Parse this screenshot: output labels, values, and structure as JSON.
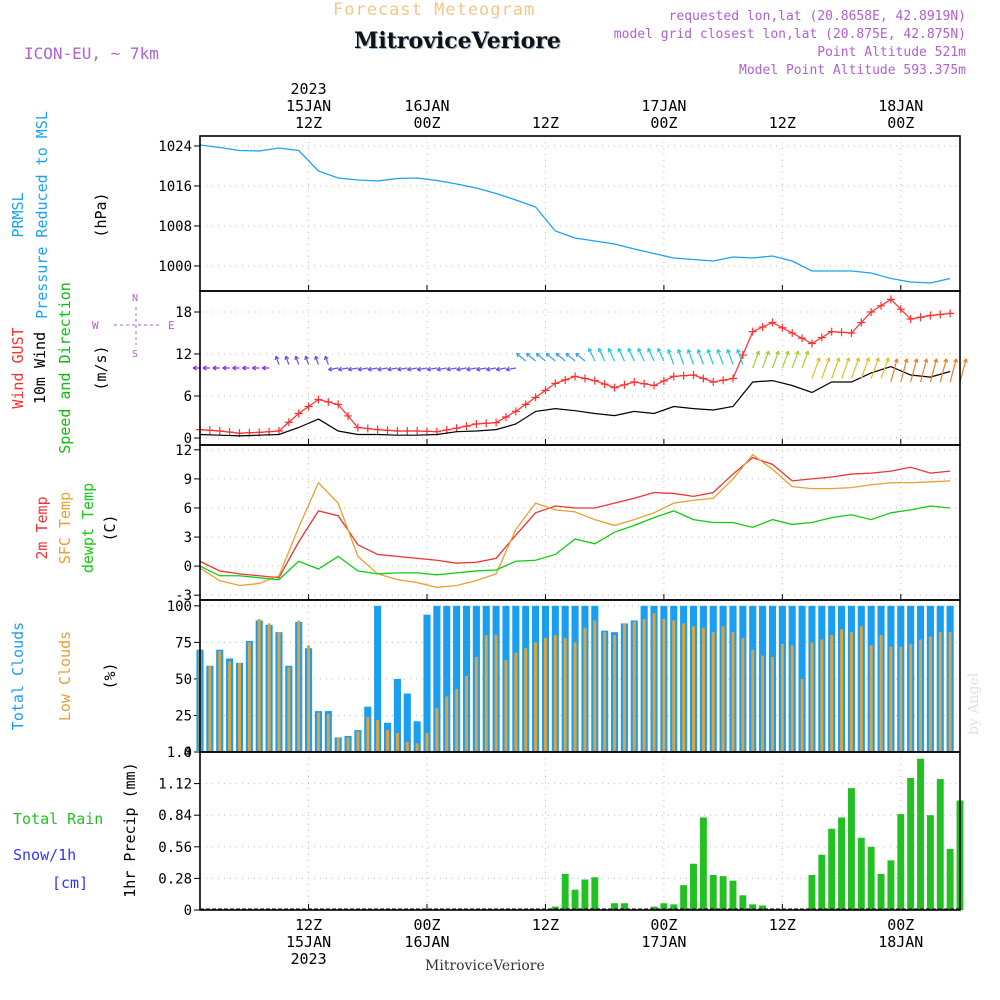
{
  "header": {
    "product": "Forecast Meteogram",
    "location": "MitroviceVeriore",
    "model": "ICON-EU, ~ 7km",
    "requested": "requested lon,lat (20.8658E, 42.8919N)",
    "closest": "model grid closest lon,lat (20.875E, 42.875N)",
    "point_alt": "Point Altitude 521m",
    "model_alt": "Model Point Altitude 593.375m",
    "watermark": "by Angel",
    "footer": "MitroviceVeriore"
  },
  "colors": {
    "pressure": "#1aa3f0",
    "gust": "#ff3030",
    "wind": "#000000",
    "t2m": "#ee3333",
    "sfc": "#e8a030",
    "dewpt": "#11cc11",
    "total_cloud": "#1a9ef0",
    "low_cloud": "#e0a23a",
    "precip": "#22c022",
    "snow": "#3333ff",
    "meta": "#b060d0"
  },
  "chart_data": [
    {
      "type": "line",
      "panel": "pressure",
      "title": "PRMSL Pressure Reduced to MSL",
      "ylabel": "(hPa)",
      "ylim": [
        995,
        1026
      ],
      "yticks": [
        1000,
        1008,
        1016,
        1024
      ],
      "x_hours": [
        0,
        2,
        4,
        6,
        8,
        10,
        12,
        14,
        16,
        18,
        20,
        22,
        24,
        26,
        28,
        30,
        32,
        34,
        36,
        38,
        40,
        42,
        44,
        46,
        48,
        50,
        52,
        54,
        56,
        58,
        60,
        62,
        64,
        66,
        68,
        70,
        72,
        74,
        76
      ],
      "values": [
        1024.2,
        1023.7,
        1023.1,
        1023.0,
        1023.6,
        1023.1,
        1019.0,
        1017.6,
        1017.2,
        1017.0,
        1017.5,
        1017.6,
        1017.1,
        1016.4,
        1015.6,
        1014.5,
        1013.2,
        1011.8,
        1007.0,
        1005.6,
        1005.0,
        1004.4,
        1003.4,
        1002.5,
        1001.6,
        1001.3,
        1001.0,
        1001.8,
        1001.6,
        1002.0,
        1001.0,
        999.0,
        999.0,
        999.0,
        998.6,
        997.5,
        996.8,
        996.6,
        997.5
      ]
    },
    {
      "type": "line",
      "panel": "wind",
      "title": "Wind GUST / 10m Wind Speed and Direction",
      "ylabel": "(m/s)",
      "ylim": [
        -1,
        21
      ],
      "yticks": [
        0,
        6,
        12,
        18
      ],
      "compass": "N E S W",
      "x_hours": [
        0,
        2,
        4,
        6,
        8,
        10,
        12,
        14,
        16,
        18,
        20,
        22,
        24,
        26,
        28,
        30,
        32,
        34,
        36,
        38,
        40,
        42,
        44,
        46,
        48,
        50,
        52,
        54,
        56,
        58,
        60,
        62,
        64,
        66,
        68,
        70,
        72,
        74,
        76
      ],
      "series": [
        {
          "name": "Wind GUST",
          "values": [
            1.2,
            1.0,
            0.7,
            0.8,
            1.0,
            3.5,
            5.5,
            4.8,
            1.5,
            1.2,
            1.0,
            1.0,
            0.9,
            1.4,
            2.0,
            2.2,
            3.8,
            5.8,
            7.8,
            8.8,
            8.2,
            7.2,
            8.0,
            7.5,
            8.8,
            9.0,
            8.0,
            8.5,
            15.2,
            16.5,
            15.0,
            13.5,
            15.2,
            15.0,
            18.0,
            19.8,
            17.0,
            17.5,
            17.8
          ]
        },
        {
          "name": "10m Wind",
          "values": [
            0.5,
            0.4,
            0.3,
            0.4,
            0.5,
            1.5,
            2.7,
            1.0,
            0.5,
            0.5,
            0.4,
            0.4,
            0.5,
            0.9,
            1.0,
            1.2,
            2.0,
            3.8,
            4.2,
            3.9,
            3.5,
            3.2,
            3.8,
            3.5,
            4.5,
            4.2,
            4.0,
            4.5,
            8.0,
            8.2,
            7.5,
            6.5,
            8.0,
            8.0,
            9.3,
            10.2,
            9.0,
            8.7,
            9.5
          ]
        }
      ],
      "arrow_color_by_speed": [
        "#9030e0",
        "#7050e8",
        "#40a0f0",
        "#20c8e0",
        "#40d0a0",
        "#a0d030",
        "#e0c020",
        "#f08020"
      ]
    },
    {
      "type": "line",
      "panel": "temperature",
      "title": "2m Temp / SFC Temp / dewpt Temp",
      "ylabel": "(C)",
      "ylim": [
        -3.5,
        12.5
      ],
      "yticks": [
        -3,
        0,
        3,
        6,
        9,
        12
      ],
      "x_hours": [
        0,
        2,
        4,
        6,
        8,
        10,
        12,
        14,
        16,
        18,
        20,
        22,
        24,
        26,
        28,
        30,
        32,
        34,
        36,
        38,
        40,
        42,
        44,
        46,
        48,
        50,
        52,
        54,
        56,
        58,
        60,
        62,
        64,
        66,
        68,
        70,
        72,
        74,
        76
      ],
      "series": [
        {
          "name": "2m Temp",
          "values": [
            0.5,
            -0.5,
            -0.8,
            -1.0,
            -1.2,
            2.5,
            5.7,
            5.2,
            2.2,
            1.2,
            1.0,
            0.8,
            0.6,
            0.3,
            0.4,
            0.8,
            3.2,
            5.5,
            6.2,
            6.0,
            6.0,
            6.5,
            7.0,
            7.6,
            7.5,
            7.2,
            7.6,
            9.5,
            11.2,
            10.5,
            8.8,
            9.0,
            9.2,
            9.5,
            9.6,
            9.8,
            10.2,
            9.6,
            9.8
          ]
        },
        {
          "name": "SFC Temp",
          "values": [
            -0.2,
            -1.5,
            -2.0,
            -1.8,
            -1.0,
            4.0,
            8.6,
            6.5,
            1.0,
            -0.8,
            -1.4,
            -1.7,
            -2.2,
            -2.0,
            -1.5,
            -0.8,
            3.8,
            6.5,
            5.8,
            5.6,
            4.8,
            4.2,
            4.8,
            5.5,
            6.5,
            6.8,
            7.0,
            9.0,
            11.5,
            10.0,
            8.2,
            8.0,
            8.0,
            8.1,
            8.4,
            8.6,
            8.6,
            8.7,
            8.8
          ]
        },
        {
          "name": "dewpt Temp",
          "values": [
            0.0,
            -1.0,
            -1.0,
            -1.2,
            -1.4,
            0.5,
            -0.3,
            1.0,
            -0.5,
            -0.8,
            -0.7,
            -0.7,
            -0.9,
            -0.7,
            -0.5,
            -0.4,
            0.5,
            0.6,
            1.2,
            2.8,
            2.3,
            3.5,
            4.2,
            5.0,
            5.7,
            4.8,
            4.5,
            4.5,
            4.0,
            4.8,
            4.3,
            4.5,
            5.0,
            5.3,
            4.8,
            5.5,
            5.8,
            6.2,
            6.0
          ]
        }
      ]
    },
    {
      "type": "bar",
      "panel": "clouds",
      "title": "Total Clouds / Low Clouds",
      "ylabel": "(%)",
      "ylim": [
        0,
        104
      ],
      "yticks": [
        0,
        25,
        50,
        75,
        100
      ],
      "x_start_hour": 0,
      "x_step_hours": 1,
      "series": [
        {
          "name": "Total Clouds",
          "values": [
            70,
            59,
            70,
            64,
            61,
            76,
            90,
            87,
            82,
            59,
            89,
            71,
            28,
            28,
            10,
            11,
            15,
            31,
            100,
            20,
            50,
            40,
            21,
            94,
            100,
            100,
            100,
            100,
            100,
            100,
            100,
            100,
            100,
            100,
            100,
            100,
            100,
            100,
            100,
            100,
            100,
            83,
            82,
            88,
            90,
            100,
            100,
            100,
            100,
            100,
            100,
            100,
            100,
            100,
            100,
            100,
            100,
            100,
            100,
            100,
            100,
            100,
            100,
            100,
            100,
            100,
            100,
            100,
            100,
            100,
            100,
            100,
            100,
            100,
            100,
            100,
            100
          ]
        },
        {
          "name": "Low Clouds",
          "values": [
            70,
            59,
            69,
            62,
            61,
            75,
            91,
            88,
            82,
            58,
            90,
            73,
            27,
            26,
            10,
            10,
            14,
            24,
            22,
            15,
            13,
            7,
            6,
            13,
            30,
            38,
            43,
            52,
            65,
            80,
            80,
            63,
            68,
            71,
            75,
            78,
            80,
            78,
            75,
            85,
            90,
            82,
            80,
            88,
            89,
            91,
            95,
            91,
            90,
            88,
            86,
            85,
            82,
            86,
            82,
            78,
            70,
            66,
            65,
            74,
            73,
            50,
            75,
            77,
            80,
            84,
            82,
            86,
            73,
            80,
            72,
            72,
            74,
            77,
            79,
            82,
            82
          ]
        }
      ]
    },
    {
      "type": "bar",
      "panel": "precip",
      "title": "Total Rain / Snow/1h [cm]",
      "ylabel": "1hr Precip (mm)",
      "ylim": [
        0,
        1.4
      ],
      "yticks": [
        0,
        0.28,
        0.56,
        0.84,
        1.12,
        1.4
      ],
      "x_start_hour": 0,
      "x_step_hours": 1,
      "series": [
        {
          "name": "Total Rain",
          "values": [
            0,
            0,
            0,
            0,
            0,
            0,
            0,
            0,
            0,
            0,
            0,
            0,
            0,
            0,
            0,
            0,
            0,
            0,
            0,
            0,
            0,
            0,
            0,
            0,
            0,
            0,
            0,
            0,
            0,
            0,
            0,
            0,
            0,
            0,
            0,
            0,
            0.03,
            0.32,
            0.18,
            0.27,
            0.29,
            0,
            0.06,
            0.06,
            0,
            0,
            0.03,
            0.06,
            0.05,
            0.22,
            0.41,
            0.82,
            0.31,
            0.3,
            0.26,
            0.13,
            0.05,
            0.04,
            0,
            0,
            0,
            0,
            0.31,
            0.49,
            0.72,
            0.82,
            1.08,
            0.64,
            0.56,
            0.32,
            0.44,
            0.85,
            1.17,
            1.34,
            0.84,
            1.16,
            0.54,
            0.97
          ]
        },
        {
          "name": "Snow/1h",
          "values": [
            0,
            0,
            0,
            0,
            0,
            0,
            0,
            0,
            0,
            0,
            0,
            0,
            0,
            0,
            0,
            0,
            0,
            0,
            0,
            0,
            0,
            0,
            0,
            0,
            0,
            0,
            0,
            0,
            0,
            0,
            0,
            0,
            0,
            0,
            0,
            0,
            0,
            0,
            0,
            0,
            0,
            0,
            0,
            0,
            0,
            0,
            0,
            0,
            0,
            0,
            0,
            0,
            0,
            0,
            0,
            0,
            0,
            0,
            0,
            0,
            0,
            0,
            0,
            0,
            0,
            0,
            0,
            0,
            0,
            0,
            0,
            0,
            0,
            0,
            0,
            0,
            0,
            0
          ]
        }
      ]
    }
  ],
  "time_axis": {
    "hour_start": 0,
    "hour_end": 77,
    "major_ticks": [
      {
        "hour": 11,
        "top": [
          "2023",
          "15JAN",
          "12Z"
        ],
        "bottom": [
          "12Z",
          "15JAN",
          "2023"
        ]
      },
      {
        "hour": 23,
        "top": [
          "16JAN",
          "00Z"
        ],
        "bottom": [
          "00Z",
          "16JAN"
        ]
      },
      {
        "hour": 35,
        "top": [
          "12Z"
        ],
        "bottom": [
          "12Z"
        ]
      },
      {
        "hour": 47,
        "top": [
          "17JAN",
          "00Z"
        ],
        "bottom": [
          "00Z",
          "17JAN"
        ]
      },
      {
        "hour": 59,
        "top": [
          "12Z"
        ],
        "bottom": [
          "12Z"
        ]
      },
      {
        "hour": 71,
        "top": [
          "18JAN",
          "00Z"
        ],
        "bottom": [
          "00Z",
          "18JAN"
        ]
      }
    ]
  },
  "panel_labels": {
    "pressure": [
      {
        "text": "PRMSL",
        "color": "#1aa3f0"
      },
      {
        "text": "Pressure Reduced to MSL",
        "color": "#1aa3f0"
      },
      {
        "text": "(hPa)",
        "color": "#000000"
      }
    ],
    "wind": [
      {
        "text": "Wind GUST",
        "color": "#ff3030"
      },
      {
        "text": "10m Wind",
        "color": "#000000"
      },
      {
        "text": "Speed and Direction",
        "color": "#11bb11"
      },
      {
        "text": "(m/s)",
        "color": "#000000"
      }
    ],
    "temperature": [
      {
        "text": "2m Temp",
        "color": "#ee3333"
      },
      {
        "text": "SFC Temp",
        "color": "#e8a030"
      },
      {
        "text": "dewpt Temp",
        "color": "#11cc11"
      },
      {
        "text": "(C)",
        "color": "#000000"
      }
    ],
    "clouds": [
      {
        "text": "Total Clouds",
        "color": "#1a9ef0"
      },
      {
        "text": "Low Clouds",
        "color": "#e0a23a"
      },
      {
        "text": "(%)",
        "color": "#000000"
      }
    ],
    "precip": [
      {
        "text": "1hr Precip (mm)",
        "color": "#000000"
      }
    ],
    "precip_legend": [
      {
        "text": "Total  Rain",
        "color": "#22c022"
      },
      {
        "text": "Snow/1h",
        "color": "#3333ff"
      },
      {
        "text": "[cm]",
        "color": "#3333ff"
      }
    ]
  }
}
